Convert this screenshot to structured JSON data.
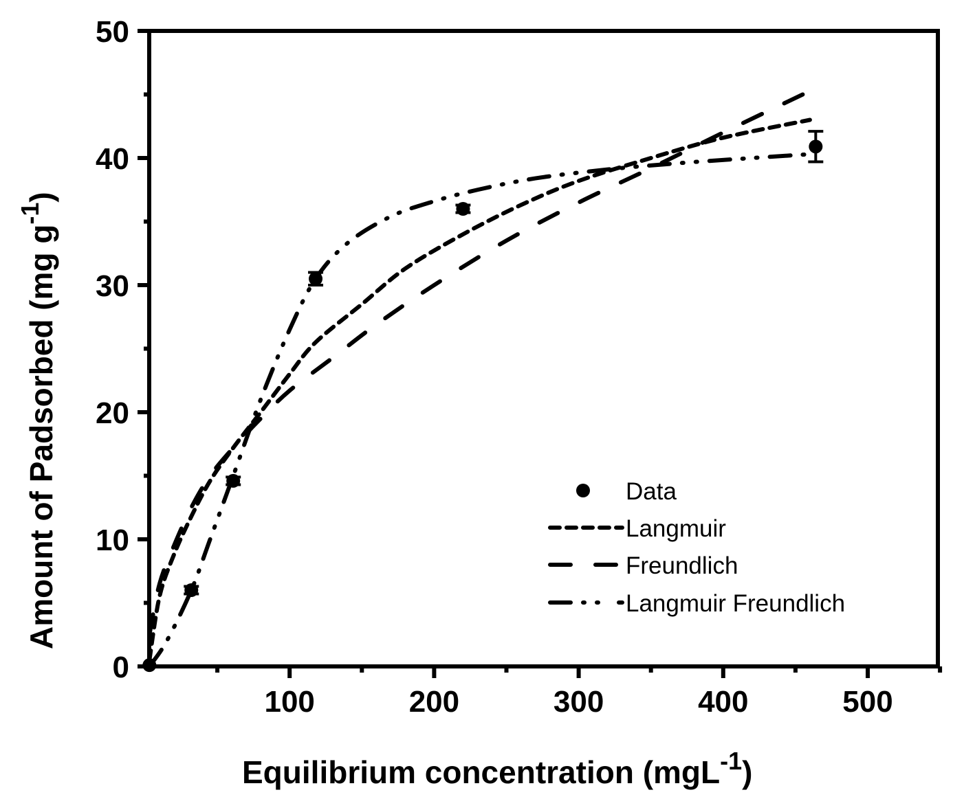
{
  "chart_data": {
    "type": "scatter",
    "title": "",
    "xlabel": "Equilibrium concentration (mgL-1)",
    "xlabel_main": "Equilibrium concentration (mgL",
    "xlabel_sup": "-1",
    "xlabel_close": ")",
    "ylabel": "Amount of Padsorbed (mg g-1)",
    "ylabel_main": "Amount of Padsorbed (mg g",
    "ylabel_sup": "-1",
    "ylabel_close": ")",
    "xlim": [
      3,
      550
    ],
    "ylim": [
      0,
      50
    ],
    "x_ticks": [
      100,
      200,
      300,
      400,
      500
    ],
    "x_minor_ticks": [
      50,
      150,
      250,
      350,
      450,
      550
    ],
    "y_ticks": [
      0,
      10,
      20,
      30,
      40,
      50
    ],
    "y_minor_ticks": [
      5,
      15,
      25,
      35,
      45
    ],
    "grid": false,
    "legend_position": "lower right",
    "series": [
      {
        "name": "Data",
        "style": "markers",
        "x": [
          3,
          32,
          61,
          118,
          220,
          464
        ],
        "y": [
          0.1,
          6.0,
          14.6,
          30.5,
          36.0,
          40.9
        ],
        "y_error": [
          0.2,
          0.3,
          0.3,
          0.5,
          0.3,
          1.2
        ]
      },
      {
        "name": "Langmuir",
        "style": "short-dash",
        "x": [
          3,
          10,
          20,
          32,
          45,
          61,
          80,
          100,
          118,
          150,
          180,
          220,
          260,
          300,
          350,
          400,
          460
        ],
        "y": [
          0.5,
          5.5,
          8.8,
          11.8,
          14.6,
          17.2,
          20.0,
          23.0,
          25.5,
          28.5,
          31.3,
          34.0,
          36.3,
          38.2,
          40.0,
          41.6,
          43.0
        ]
      },
      {
        "name": "Freundlich",
        "style": "long-dash",
        "x": [
          3,
          10,
          20,
          32,
          45,
          61,
          80,
          100,
          130,
          160,
          200,
          250,
          300,
          350,
          400,
          455
        ],
        "y": [
          2.5,
          6.5,
          9.5,
          12.5,
          15.0,
          17.2,
          19.5,
          21.7,
          24.3,
          26.9,
          30.0,
          33.5,
          36.5,
          39.2,
          42.0,
          45.0
        ]
      },
      {
        "name": "Langmuir Freundlich",
        "style": "dash-dot-dot",
        "x": [
          3,
          15,
          32,
          45,
          61,
          80,
          100,
          118,
          140,
          170,
          200,
          230,
          270,
          320,
          370,
          420,
          460
        ],
        "y": [
          0.0,
          2.0,
          6.0,
          10.0,
          15.0,
          21.0,
          26.5,
          30.5,
          33.3,
          35.4,
          36.6,
          37.5,
          38.4,
          39.1,
          39.6,
          40.0,
          40.3
        ]
      }
    ]
  },
  "legend": {
    "items": [
      {
        "label": "Data"
      },
      {
        "label": "Langmuir"
      },
      {
        "label": "Freundlich"
      },
      {
        "label": "Langmuir Freundlich"
      }
    ]
  },
  "colors": {
    "foreground": "#000000",
    "background": "#ffffff"
  }
}
